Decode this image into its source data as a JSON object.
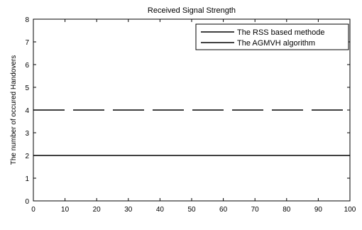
{
  "chart_data": {
    "type": "line",
    "title": "Received Signal Strength",
    "xlabel": "",
    "ylabel": "The number of occured Handovers",
    "xlim": [
      0,
      100
    ],
    "ylim": [
      0,
      8
    ],
    "x_ticks": [
      "0",
      "10",
      "20",
      "30",
      "40",
      "50",
      "60",
      "70",
      "80",
      "90",
      "100"
    ],
    "y_ticks": [
      "0",
      "1",
      "2",
      "3",
      "4",
      "5",
      "6",
      "7",
      "8"
    ],
    "grid": false,
    "legend_position": "top-right",
    "series": [
      {
        "name": "The RSS based methode",
        "style": "dashed",
        "color": "#000000",
        "x": [
          0,
          100
        ],
        "y": [
          4,
          4
        ]
      },
      {
        "name": "The AGMVH algorithm",
        "style": "solid",
        "color": "#000000",
        "x": [
          0,
          100
        ],
        "y": [
          2,
          2
        ]
      }
    ]
  }
}
